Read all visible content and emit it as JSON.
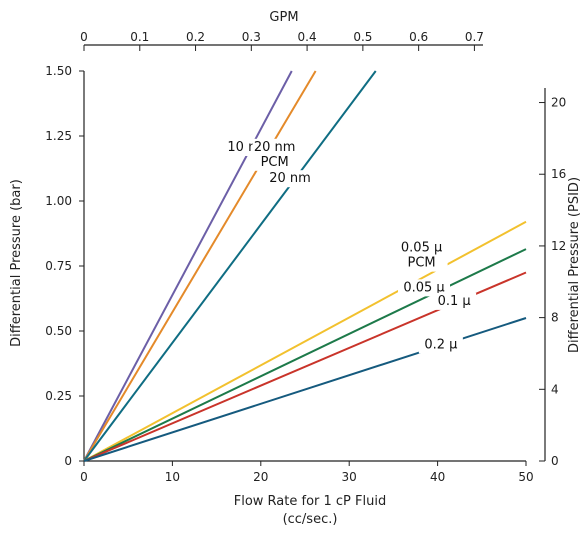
{
  "chart_data": {
    "type": "line",
    "x_axis": {
      "label_line1": "Flow Rate for 1 cP Fluid",
      "label_line2": "(cc/sec.)",
      "range": [
        0,
        50
      ],
      "ticks": [
        0,
        10,
        20,
        30,
        40,
        50
      ]
    },
    "x2_axis": {
      "label": "GPM",
      "range": [
        0,
        0.7925
      ],
      "ticks": [
        "0",
        "0.1",
        "0.2",
        "0.3",
        "0.4",
        "0.5",
        "0.6",
        "0.7"
      ]
    },
    "y_axis": {
      "label": "Differential Pressure (bar)",
      "range": [
        0,
        1.5
      ],
      "ticks": [
        "0",
        "0.25",
        "0.50",
        "0.75",
        "1.00",
        "1.25",
        "1.50"
      ]
    },
    "y2_axis": {
      "label": "Differential Pressure (PSID)",
      "range": [
        0,
        21.76
      ],
      "ticks": [
        "0",
        "4",
        "8",
        "12",
        "16",
        "20"
      ]
    },
    "series": [
      {
        "name": "10 nm",
        "label_lines": [
          "10 nm"
        ],
        "color": "#6c5fa7",
        "points": [
          [
            0,
            0
          ],
          [
            23.5,
            1.5
          ]
        ]
      },
      {
        "name": "20 nm PCM",
        "label_lines": [
          "20 nm",
          "PCM"
        ],
        "color": "#e48a2a",
        "points": [
          [
            0,
            0
          ],
          [
            26.2,
            1.5
          ]
        ]
      },
      {
        "name": "20 nm",
        "label_lines": [
          "20 nm"
        ],
        "color": "#0f6d83",
        "points": [
          [
            0,
            0
          ],
          [
            33.0,
            1.5
          ]
        ]
      },
      {
        "name": "0.05 µ PCM",
        "label_lines": [
          "0.05 µ",
          "PCM"
        ],
        "color": "#f2c12e",
        "points": [
          [
            0,
            0
          ],
          [
            50,
            0.92
          ]
        ]
      },
      {
        "name": "0.05 µ",
        "label_lines": [
          "0.05 µ"
        ],
        "color": "#1d7a4a",
        "points": [
          [
            0,
            0
          ],
          [
            50,
            0.815
          ]
        ]
      },
      {
        "name": "0.1 µ",
        "label_lines": [
          "0.1 µ"
        ],
        "color": "#c9342a",
        "points": [
          [
            0,
            0
          ],
          [
            50,
            0.725
          ]
        ]
      },
      {
        "name": "0.2 µ",
        "label_lines": [
          "0.2 µ"
        ],
        "color": "#155a7e",
        "points": [
          [
            0,
            0
          ],
          [
            50,
            0.55
          ]
        ]
      }
    ],
    "legend": "inline-labels",
    "grid": false
  }
}
